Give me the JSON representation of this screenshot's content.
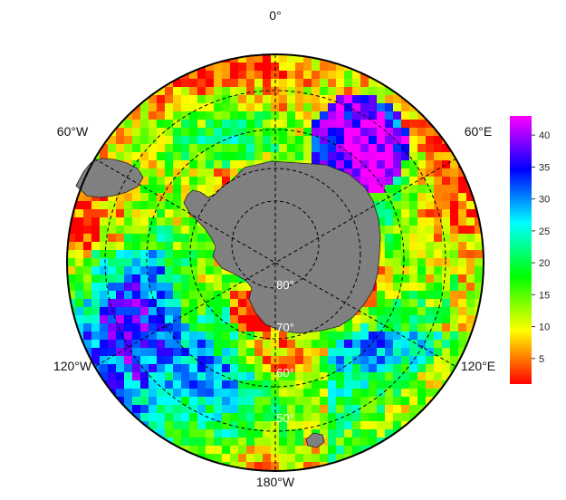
{
  "map": {
    "projection": "south-polar-stereographic",
    "longitude_labels": {
      "top": "0°",
      "upper_left": "60°W",
      "upper_right": "60°E",
      "lower_left": "120°W",
      "lower_right": "120°E",
      "bottom": "180°W"
    },
    "latitude_labels": [
      "80°",
      "70°",
      "60°",
      "50°"
    ],
    "land_color": "#808080",
    "grid_style": "dashed"
  },
  "colorbar": {
    "ticks": [
      5,
      10,
      15,
      20,
      25,
      30,
      35,
      40
    ],
    "range": [
      1,
      43
    ],
    "colormap": [
      "#ff0000",
      "#ffff00",
      "#00ff00",
      "#00ffff",
      "#0000ff",
      "#ff00ff"
    ]
  }
}
